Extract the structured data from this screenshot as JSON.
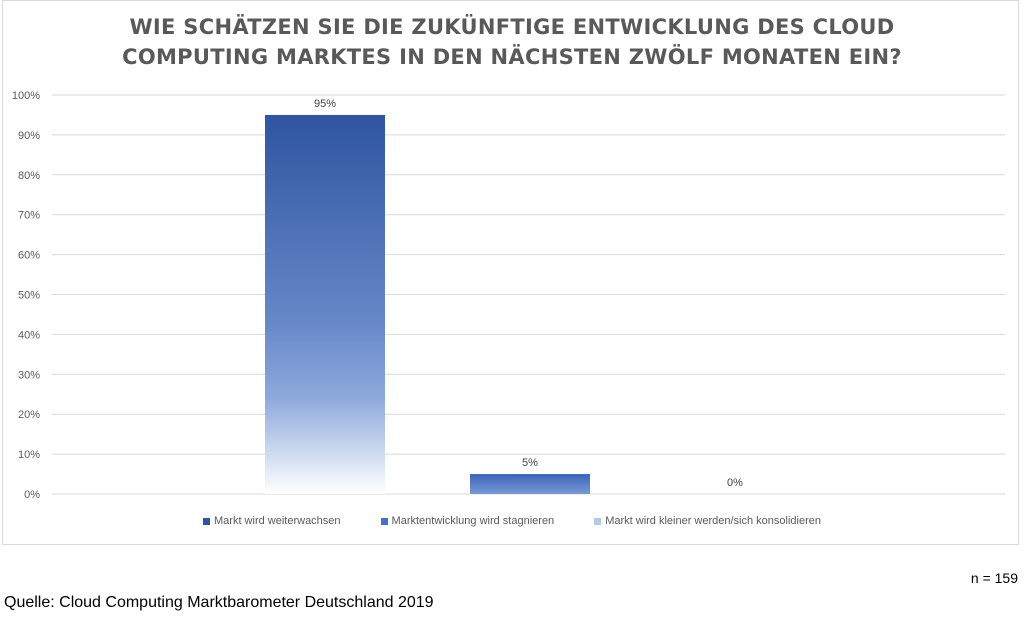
{
  "chart_data": {
    "type": "bar",
    "title": "WIE SCHÄTZEN SIE DIE ZUKÜNFTIGE ENTWICKLUNG DES CLOUD COMPUTING MARKTES IN DEN NÄCHSTEN ZWÖLF MONATEN EIN?",
    "title_lines": [
      "WIE SCHÄTZEN SIE DIE ZUKÜNFTIGE ENTWICKLUNG DES CLOUD",
      "COMPUTING MARKTES IN DEN NÄCHSTEN ZWÖLF MONATEN EIN?"
    ],
    "series": [
      {
        "name": "Markt wird weiterwachsen",
        "value": 95,
        "label": "95%",
        "color": "#2f55a0"
      },
      {
        "name": "Marktentwicklung wird stagnieren",
        "value": 5,
        "label": "5%",
        "color": "#4472c4"
      },
      {
        "name": "Markt wird kleiner werden/sich konsolidieren",
        "value": 0,
        "label": "0%",
        "color": "#b4c7e7"
      }
    ],
    "ylim": [
      0,
      100
    ],
    "yticks": [
      "0%",
      "10%",
      "20%",
      "30%",
      "40%",
      "50%",
      "60%",
      "70%",
      "80%",
      "90%",
      "100%"
    ],
    "grid": true,
    "legend": "bottom"
  },
  "footer": {
    "n": "n = 159",
    "source": "Quelle: Cloud Computing Marktbarometer Deutschland 2019"
  }
}
